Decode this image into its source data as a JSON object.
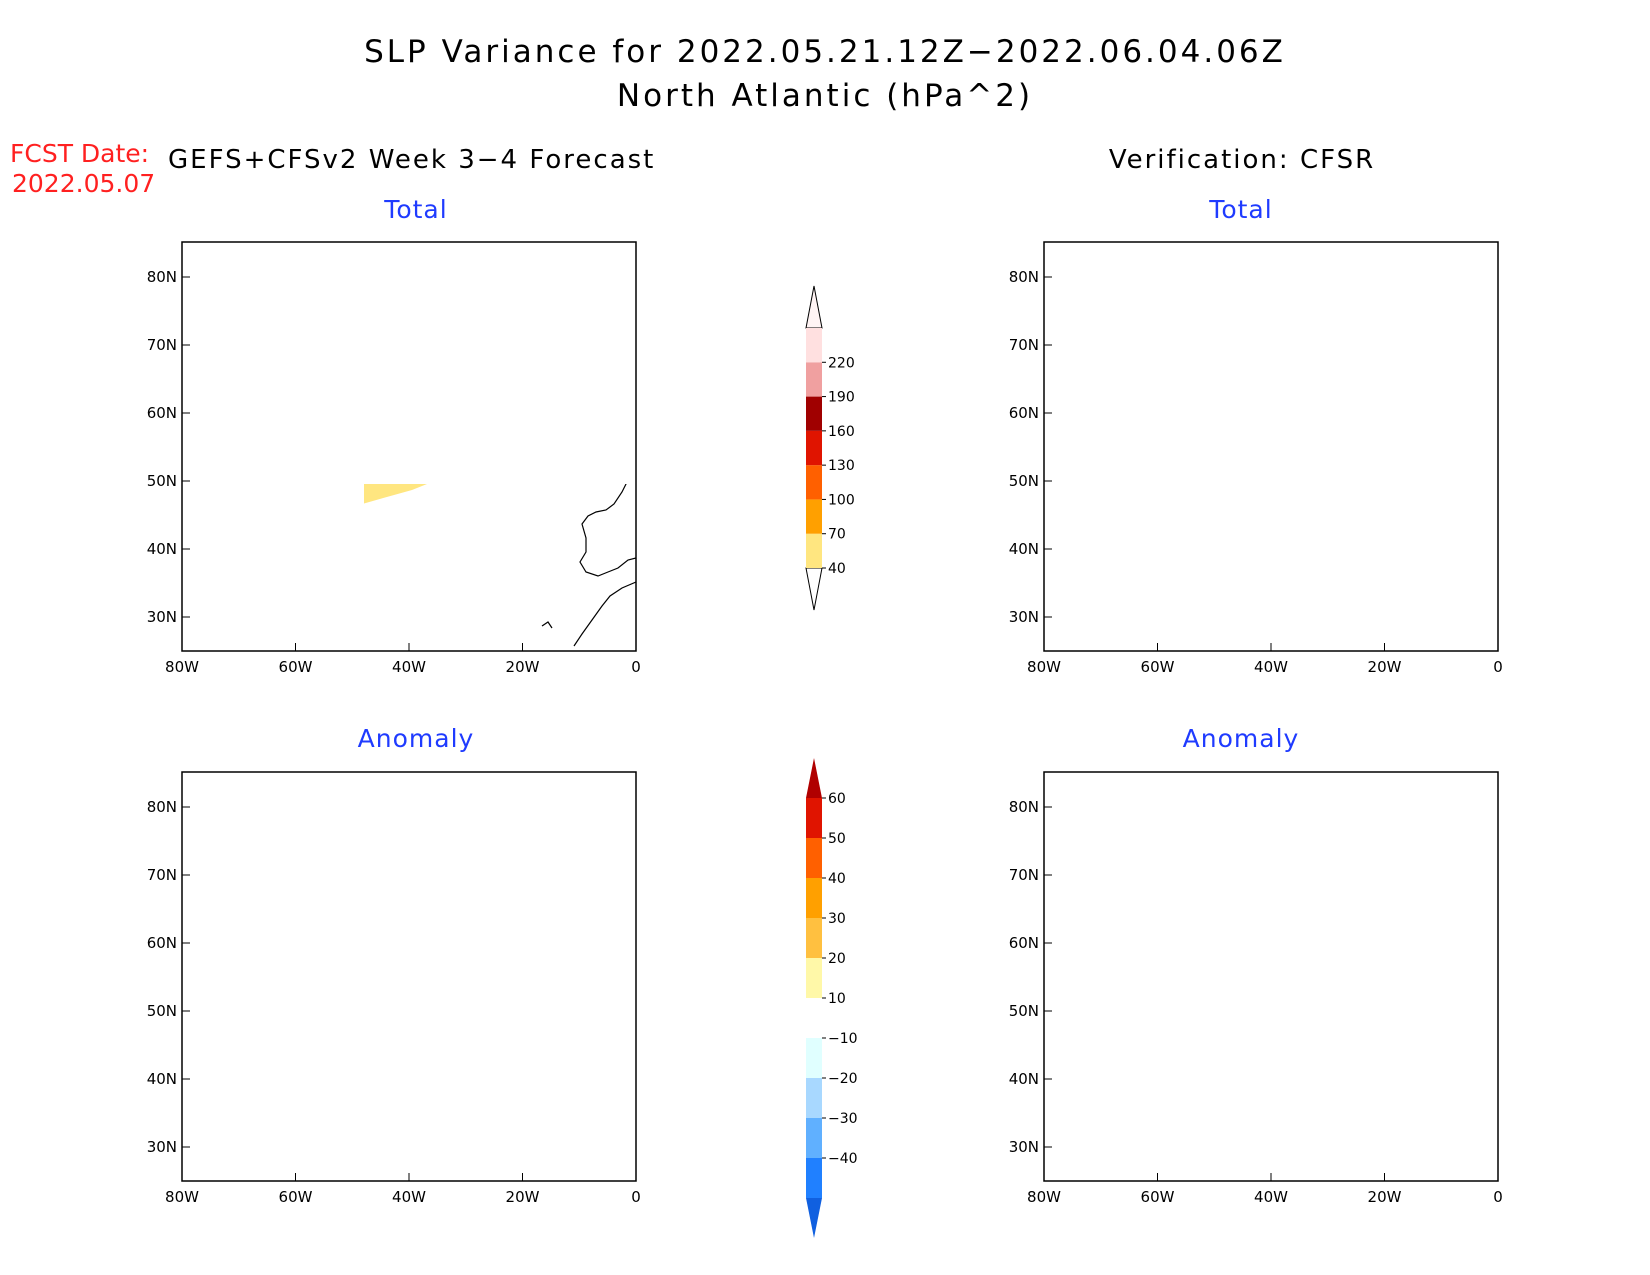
{
  "header": {
    "title": "SLP Variance for 2022.05.21.12Z−2022.06.04.06Z",
    "subtitle": "North Atlantic (hPa^2)",
    "fcst_label": "FCST Date:",
    "fcst_date": "2022.05.07",
    "left_column": "GEFS+CFSv2 Week 3−4 Forecast",
    "right_column": "Verification: CFSR"
  },
  "panels": {
    "forecast_total": {
      "title": "Total"
    },
    "verif_total": {
      "title": "Total"
    },
    "forecast_anomaly": {
      "title": "Anomaly"
    },
    "verif_anomaly": {
      "title": "Anomaly"
    }
  },
  "axes": {
    "lon_labels": [
      "80W",
      "60W",
      "40W",
      "20W",
      "0"
    ],
    "lat_labels": [
      "80N",
      "70N",
      "60N",
      "50N",
      "40N",
      "30N"
    ]
  },
  "colorbars": {
    "total": {
      "labels": [
        "40",
        "70",
        "100",
        "130",
        "160",
        "190",
        "220"
      ],
      "colors": [
        "#ffe680",
        "#ffa000",
        "#ff6000",
        "#e01400",
        "#a00000",
        "#f0a0a0",
        "#ffe0e0"
      ]
    },
    "anomaly": {
      "labels": [
        "60",
        "50",
        "40",
        "30",
        "20",
        "10",
        "−10",
        "−20",
        "−30",
        "−40"
      ],
      "colors": [
        "#b00000",
        "#e01400",
        "#ff6000",
        "#ffa000",
        "#ffc040",
        "#fff8a8",
        "#ffffff",
        "#e0ffff",
        "#a8d8ff",
        "#60b0ff",
        "#2080ff",
        "#1060e0"
      ]
    }
  }
}
